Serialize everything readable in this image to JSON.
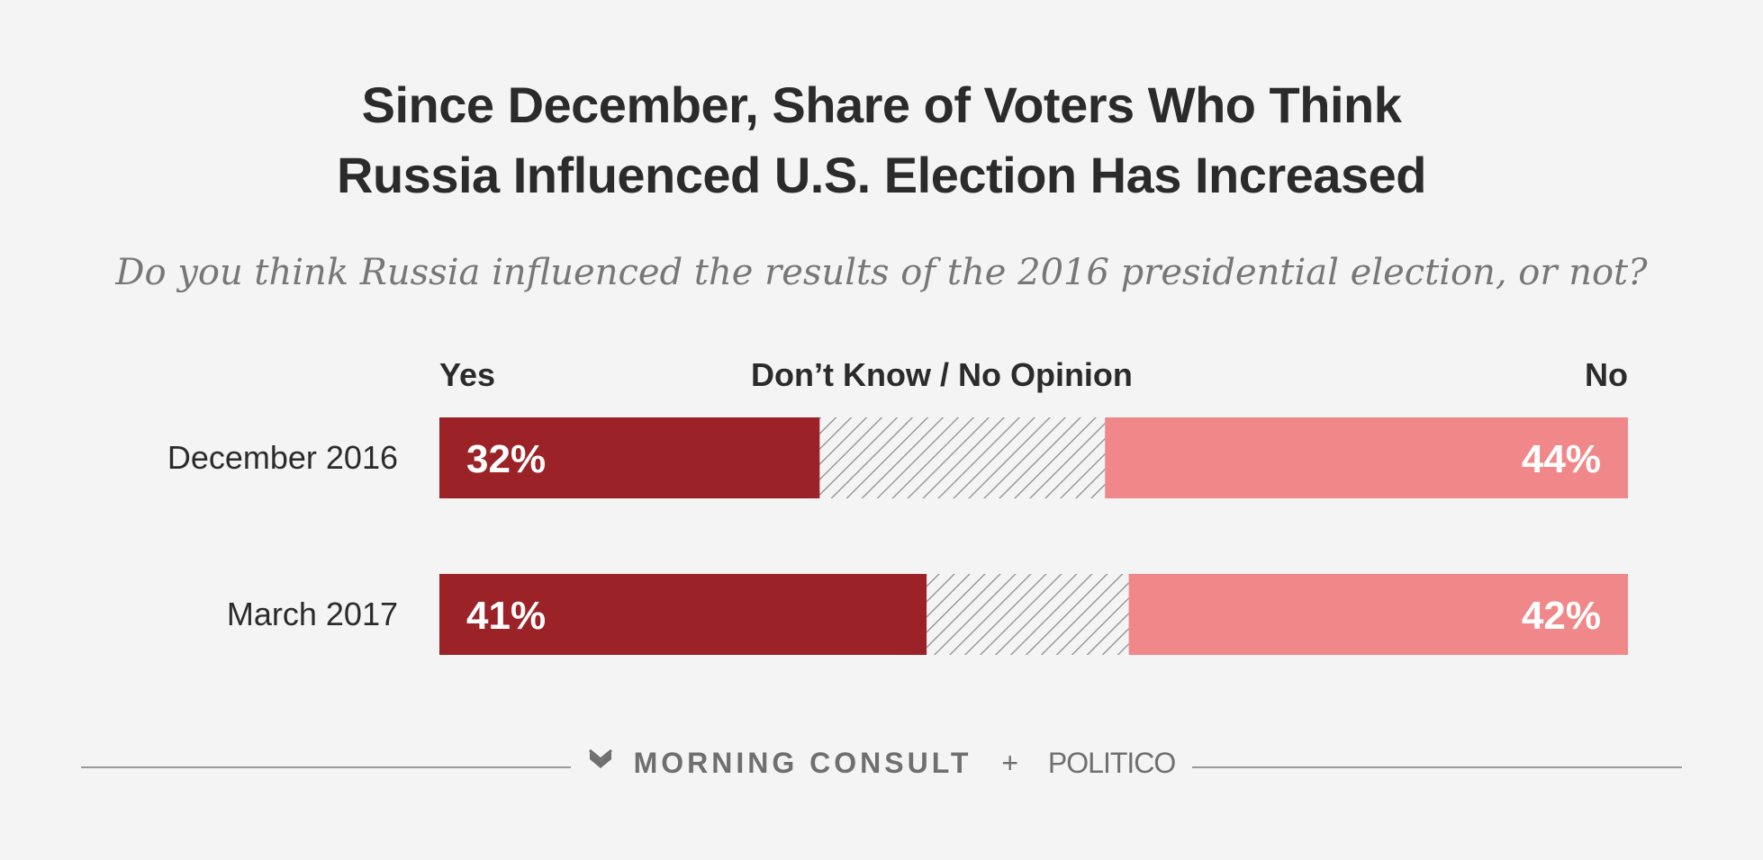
{
  "title": {
    "line1": "Since December, Share of Voters Who Think",
    "line2": "Russia Influenced U.S. Election Has Increased"
  },
  "subtitle": "Do you think Russia influenced the results of the 2016 presidential election, or not?",
  "legend": {
    "yes": "Yes",
    "dont_know": "Don’t Know / No Opinion",
    "no": "No"
  },
  "colors": {
    "yes": "#9b2226",
    "no": "#f0888a",
    "hatch_stroke": "#8a8a8a",
    "hatch_bg": "#f4f4f4"
  },
  "chart_data": {
    "type": "bar",
    "orientation": "horizontal",
    "stacked": true,
    "categories": [
      "December 2016",
      "March 2017"
    ],
    "series": [
      {
        "name": "Yes",
        "values": [
          32,
          41
        ],
        "labels": [
          "32%",
          "41%"
        ]
      },
      {
        "name": "Don’t Know / No Opinion",
        "values": [
          24,
          17
        ]
      },
      {
        "name": "No",
        "values": [
          44,
          42
        ],
        "labels": [
          "44%",
          "42%"
        ]
      }
    ],
    "xlim": [
      0,
      100
    ],
    "title": "Since December, Share of Voters Who Think Russia Influenced U.S. Election Has Increased"
  },
  "footer": {
    "brand1": "MORNING CONSULT",
    "plus": "+",
    "brand2": "POLITICO"
  }
}
